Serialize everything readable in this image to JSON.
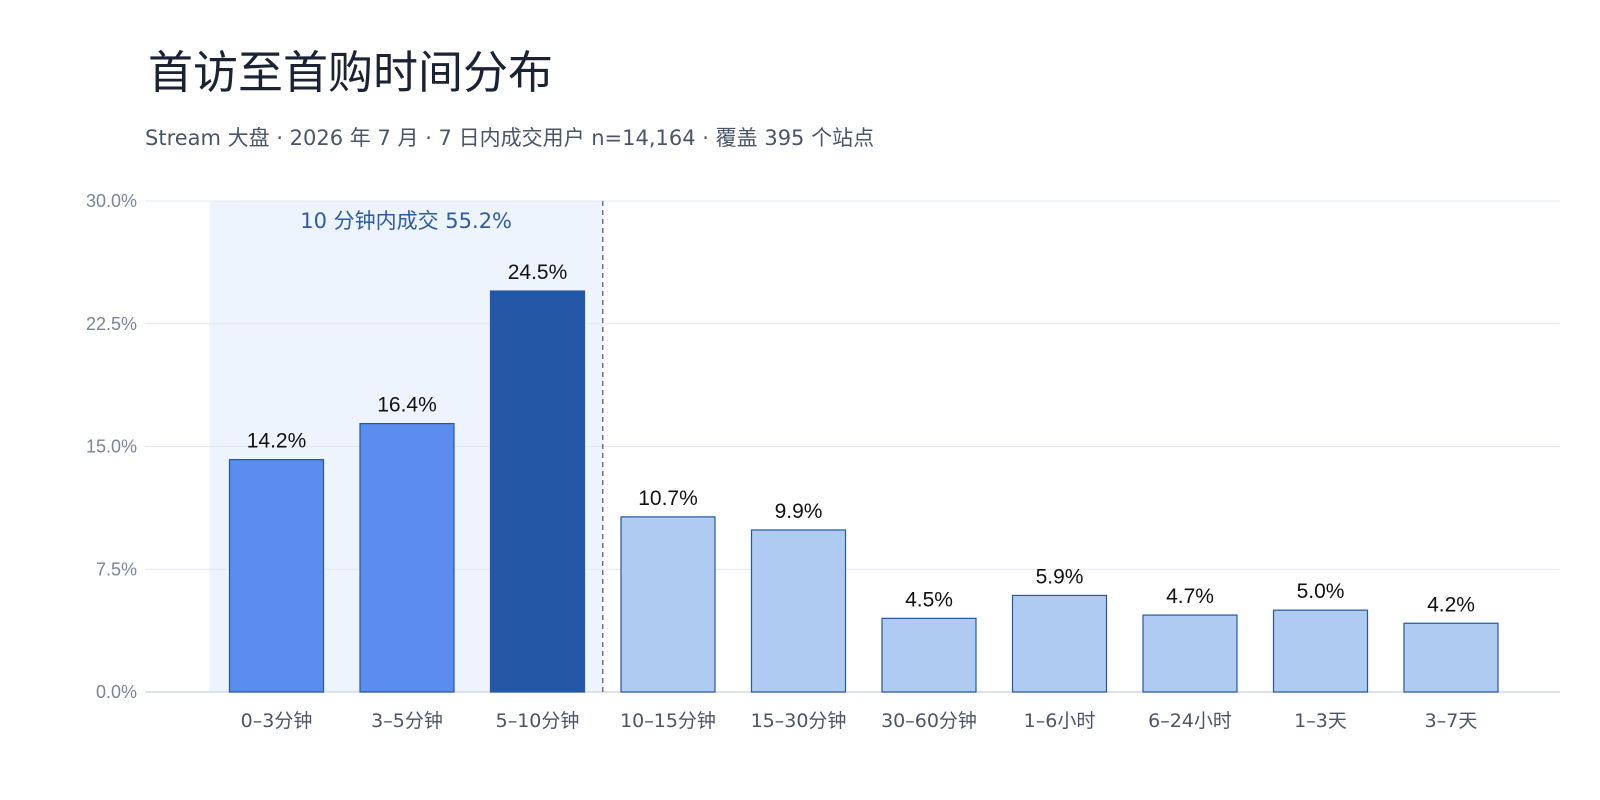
{
  "chart_data": {
    "type": "bar",
    "title": "首访至首购时间分布",
    "subtitle": "Stream 大盘 · 2026 年 7 月 · 7 日内成交用户 n=14,164 · 覆盖 395 个站点",
    "categories": [
      "0–3分钟",
      "3–5分钟",
      "5–10分钟",
      "10–15分钟",
      "15–30分钟",
      "30–60分钟",
      "1–6小时",
      "6–24小时",
      "1–3天",
      "3–7天"
    ],
    "values": [
      14.2,
      16.4,
      24.5,
      10.7,
      9.9,
      4.5,
      5.9,
      4.7,
      5.0,
      4.2
    ],
    "value_labels": [
      "14.2%",
      "16.4%",
      "24.5%",
      "10.7%",
      "9.9%",
      "4.5%",
      "5.9%",
      "4.7%",
      "5.0%",
      "4.2%"
    ],
    "ylim": [
      0,
      30
    ],
    "yticks": [
      0,
      7.5,
      15,
      22.5,
      30
    ],
    "ytick_labels": [
      "0.0%",
      "7.5%",
      "15.0%",
      "22.5%",
      "30.0%"
    ],
    "xlabel": "",
    "ylabel": "",
    "grid": true,
    "highlight": {
      "label": "10 分钟内成交 55.2%",
      "range_categories": [
        "0–3分钟",
        "5–10分钟"
      ],
      "divider_after": "5–10分钟"
    },
    "colors": {
      "within_10min": "#5b8def",
      "peak": "#2457a6",
      "after_10min": "#b0cbf2",
      "bar_outline": "#2457a6",
      "highlight_band": "#edf4fd",
      "gridline": "#e3e8ef",
      "divider": "#6b7280"
    },
    "bar_color_keys": [
      "within_10min",
      "within_10min",
      "peak",
      "after_10min",
      "after_10min",
      "after_10min",
      "after_10min",
      "after_10min",
      "after_10min",
      "after_10min"
    ]
  }
}
